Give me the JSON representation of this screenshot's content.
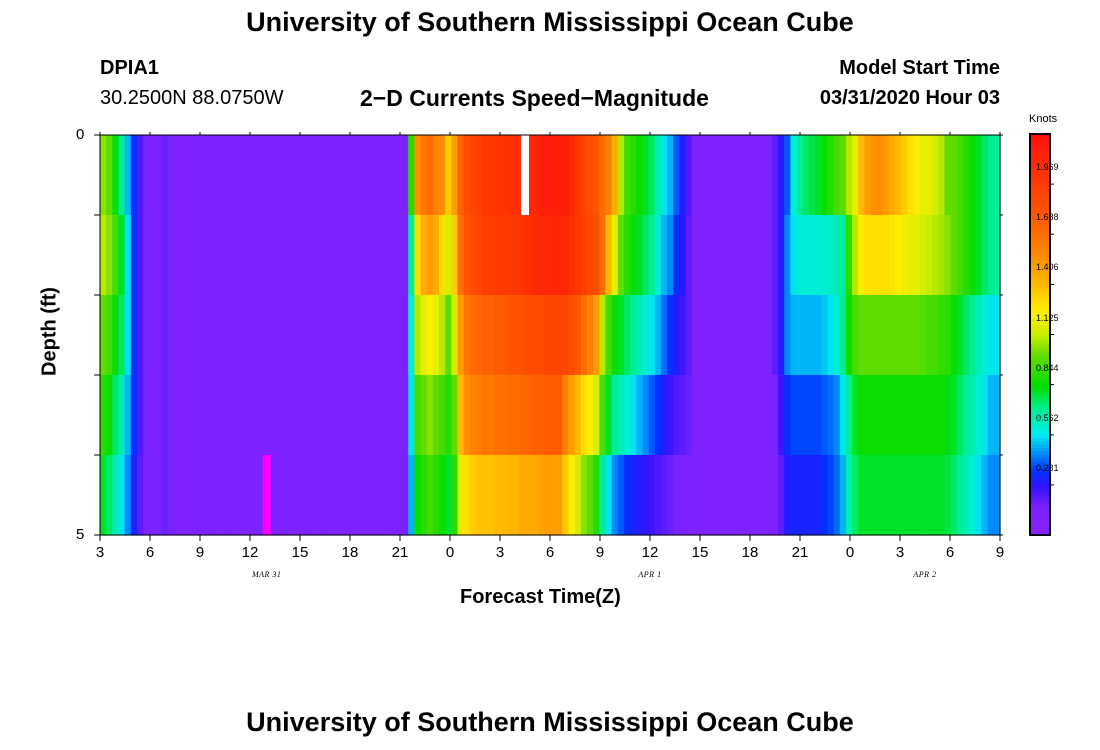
{
  "page_title": "University of Southern Mississippi Ocean Cube",
  "footer_title": "University of Southern Mississippi Ocean Cube",
  "station": {
    "id": "DPIA1",
    "coords": "30.2500N 88.0750W"
  },
  "model": {
    "label": "Model Start Time",
    "value": "03/31/2020 Hour 03"
  },
  "chart_data": {
    "type": "heatmap",
    "title": "2−D Currents Speed−Magnitude",
    "xlabel": "Forecast Time(Z)",
    "ylabel": "Depth (ft)",
    "x_range_hours": [
      0,
      54
    ],
    "y_range": [
      0,
      5
    ],
    "x_ticks": [
      "3",
      "6",
      "9",
      "12",
      "15",
      "18",
      "21",
      "0",
      "3",
      "6",
      "9",
      "12",
      "15",
      "18",
      "21",
      "0",
      "3",
      "6",
      "9"
    ],
    "date_labels": [
      {
        "text": "MAR 31",
        "hour": 10
      },
      {
        "text": "APR 1",
        "hour": 33
      },
      {
        "text": "APR 2",
        "hour": 49.5
      }
    ],
    "y_ticks": [
      "0",
      "5"
    ],
    "colorbar": {
      "unit": "Knots",
      "min": 0.0,
      "max": 2.25,
      "labels": [
        "1.969",
        "1.688",
        "1.406",
        "1.125",
        "0.844",
        "0.562",
        "0.281"
      ]
    },
    "depth_layers": [
      0,
      1,
      2,
      3,
      4,
      5
    ],
    "values_knots": [
      [
        1.05,
        1.0,
        0.85,
        0.7,
        0.5,
        0.35,
        0.22,
        0.15,
        0.12,
        0.12,
        0.18,
        0.15,
        0.1,
        0.1,
        0.1,
        0.1,
        0.1,
        0.1,
        0.1,
        0.1,
        0.1,
        0.1,
        0.1,
        0.1,
        0.1,
        0.1,
        0.1,
        0.1,
        0.1,
        0.1,
        0.1,
        0.1,
        0.1,
        0.1,
        0.1,
        0.1,
        0.1,
        0.1,
        0.1,
        0.1,
        0.1,
        0.1,
        0.1,
        0.1,
        0.1,
        0.1,
        0.1,
        0.1,
        0.1,
        0.1,
        0.9,
        1.55,
        1.65,
        1.7,
        1.6,
        1.55,
        1.35,
        1.5,
        1.75,
        1.85,
        1.9,
        1.95,
        2.0,
        2.0,
        2.02,
        2.03,
        2.05,
        2.05,
        2.08,
        2.1,
        2.12,
        2.15,
        2.15,
        2.17,
        2.17,
        2.15,
        2.1,
        2.0,
        1.9,
        1.85,
        1.8,
        1.7,
        1.6,
        1.45,
        1.1,
        0.95,
        0.9,
        0.85,
        0.8,
        0.75,
        0.65,
        0.55,
        0.5,
        0.4,
        0.3,
        0.22,
        0.1,
        0.08,
        0.08,
        0.08,
        0.08,
        0.08,
        0.08,
        0.08,
        0.08,
        0.08,
        0.08,
        0.08,
        0.1,
        0.2,
        0.3,
        0.4,
        0.6,
        0.7,
        0.75,
        0.78,
        0.8,
        0.85,
        0.9,
        0.95,
        1.0,
        1.1,
        1.2,
        1.4,
        1.5,
        1.55,
        1.55,
        1.5,
        1.45,
        1.4,
        1.35,
        1.3,
        1.25,
        1.2,
        1.2,
        1.15,
        1.1,
        1.0,
        1.0,
        0.95,
        0.9,
        0.85,
        0.8,
        0.75,
        0.7,
        0.7
      ],
      [
        1.1,
        1.05,
        0.95,
        0.8,
        0.55,
        0.35,
        0.22,
        0.15,
        0.12,
        0.12,
        0.18,
        0.15,
        0.1,
        0.1,
        0.1,
        0.1,
        0.1,
        0.1,
        0.1,
        0.1,
        0.1,
        0.1,
        0.1,
        0.1,
        0.1,
        0.1,
        0.1,
        0.1,
        0.1,
        0.1,
        0.1,
        0.1,
        0.1,
        0.1,
        0.1,
        0.1,
        0.1,
        0.1,
        0.1,
        0.1,
        0.1,
        0.1,
        0.1,
        0.1,
        0.1,
        0.1,
        0.1,
        0.1,
        0.1,
        0.1,
        0.7,
        1.3,
        1.45,
        1.5,
        1.45,
        1.3,
        1.15,
        1.35,
        1.7,
        1.8,
        1.85,
        1.9,
        1.95,
        1.95,
        1.97,
        1.98,
        2.0,
        2.0,
        2.02,
        2.05,
        2.07,
        2.1,
        2.1,
        2.12,
        2.12,
        2.1,
        2.05,
        2.0,
        1.95,
        1.9,
        1.85,
        1.7,
        1.4,
        1.2,
        1.0,
        0.9,
        0.85,
        0.8,
        0.75,
        0.7,
        0.6,
        0.5,
        0.45,
        0.35,
        0.28,
        0.2,
        0.1,
        0.08,
        0.08,
        0.08,
        0.08,
        0.08,
        0.08,
        0.08,
        0.08,
        0.08,
        0.08,
        0.08,
        0.1,
        0.2,
        0.3,
        0.45,
        0.55,
        0.6,
        0.6,
        0.6,
        0.6,
        0.6,
        0.62,
        0.65,
        0.7,
        0.9,
        1.1,
        1.25,
        1.3,
        1.3,
        1.3,
        1.3,
        1.28,
        1.25,
        1.22,
        1.2,
        1.18,
        1.15,
        1.12,
        1.1,
        1.08,
        1.05,
        1.0,
        0.95,
        0.9,
        0.85,
        0.8,
        0.75,
        0.7,
        0.7
      ],
      [
        1.0,
        0.95,
        0.85,
        0.75,
        0.55,
        0.35,
        0.22,
        0.15,
        0.12,
        0.12,
        0.18,
        0.15,
        0.1,
        0.1,
        0.1,
        0.1,
        0.1,
        0.1,
        0.1,
        0.1,
        0.1,
        0.1,
        0.1,
        0.1,
        0.1,
        0.1,
        0.1,
        0.1,
        0.1,
        0.1,
        0.1,
        0.1,
        0.1,
        0.1,
        0.1,
        0.1,
        0.1,
        0.1,
        0.1,
        0.1,
        0.1,
        0.1,
        0.1,
        0.1,
        0.1,
        0.1,
        0.1,
        0.1,
        0.1,
        0.1,
        0.6,
        1.1,
        1.2,
        1.25,
        1.2,
        1.1,
        1.0,
        1.15,
        1.5,
        1.65,
        1.7,
        1.72,
        1.75,
        1.75,
        1.77,
        1.78,
        1.8,
        1.8,
        1.82,
        1.85,
        1.85,
        1.88,
        1.9,
        1.92,
        1.92,
        1.9,
        1.85,
        1.8,
        1.7,
        1.6,
        1.5,
        1.1,
        0.95,
        0.85,
        0.8,
        0.75,
        0.7,
        0.65,
        0.6,
        0.55,
        0.5,
        0.42,
        0.35,
        0.3,
        0.25,
        0.2,
        0.1,
        0.08,
        0.08,
        0.08,
        0.08,
        0.08,
        0.08,
        0.08,
        0.08,
        0.08,
        0.08,
        0.08,
        0.1,
        0.2,
        0.3,
        0.45,
        0.5,
        0.5,
        0.5,
        0.5,
        0.5,
        0.52,
        0.55,
        0.6,
        0.7,
        0.85,
        0.95,
        1.0,
        1.0,
        1.0,
        1.0,
        1.0,
        1.0,
        1.0,
        1.0,
        1.0,
        1.0,
        0.98,
        0.95,
        0.95,
        0.92,
        0.9,
        0.85,
        0.8,
        0.75,
        0.7,
        0.65,
        0.6,
        0.55,
        0.55
      ],
      [
        0.9,
        0.85,
        0.75,
        0.65,
        0.5,
        0.35,
        0.22,
        0.15,
        0.12,
        0.12,
        0.18,
        0.15,
        0.1,
        0.1,
        0.1,
        0.1,
        0.1,
        0.1,
        0.1,
        0.1,
        0.1,
        0.1,
        0.1,
        0.1,
        0.1,
        0.1,
        0.1,
        0.1,
        0.1,
        0.1,
        0.1,
        0.1,
        0.1,
        0.1,
        0.1,
        0.1,
        0.1,
        0.1,
        0.1,
        0.1,
        0.1,
        0.1,
        0.1,
        0.1,
        0.1,
        0.1,
        0.1,
        0.1,
        0.1,
        0.1,
        0.55,
        0.95,
        1.0,
        1.05,
        1.0,
        0.95,
        0.9,
        1.0,
        1.4,
        1.55,
        1.6,
        1.62,
        1.65,
        1.65,
        1.67,
        1.68,
        1.7,
        1.7,
        1.72,
        1.73,
        1.75,
        1.75,
        1.77,
        1.78,
        1.78,
        1.6,
        1.5,
        1.4,
        1.3,
        1.25,
        1.15,
        0.95,
        0.8,
        0.7,
        0.65,
        0.6,
        0.55,
        0.5,
        0.45,
        0.4,
        0.35,
        0.3,
        0.25,
        0.22,
        0.2,
        0.18,
        0.1,
        0.08,
        0.08,
        0.08,
        0.08,
        0.08,
        0.08,
        0.08,
        0.08,
        0.08,
        0.08,
        0.08,
        0.1,
        0.15,
        0.25,
        0.35,
        0.38,
        0.38,
        0.38,
        0.38,
        0.38,
        0.4,
        0.42,
        0.45,
        0.55,
        0.7,
        0.8,
        0.85,
        0.85,
        0.85,
        0.85,
        0.85,
        0.85,
        0.85,
        0.85,
        0.85,
        0.85,
        0.85,
        0.85,
        0.85,
        0.85,
        0.82,
        0.8,
        0.75,
        0.7,
        0.65,
        0.6,
        0.55,
        0.5,
        0.5
      ],
      [
        0.8,
        0.75,
        0.65,
        0.55,
        0.45,
        0.32,
        0.2,
        0.15,
        0.12,
        0.12,
        0.18,
        0.15,
        0.1,
        0.1,
        0.1,
        0.1,
        0.1,
        0.1,
        0.1,
        0.1,
        0.1,
        0.1,
        0.1,
        0.1,
        0.1,
        0.1,
        0.1,
        0.1,
        0.1,
        0.1,
        0.1,
        0.1,
        0.1,
        0.1,
        0.1,
        0.1,
        0.1,
        0.1,
        0.1,
        0.1,
        0.1,
        0.1,
        0.1,
        0.1,
        0.1,
        0.1,
        0.1,
        0.1,
        0.1,
        0.1,
        0.5,
        0.85,
        0.9,
        0.95,
        0.9,
        0.85,
        0.8,
        0.9,
        1.2,
        1.3,
        1.35,
        1.37,
        1.38,
        1.38,
        1.4,
        1.4,
        1.42,
        1.42,
        1.45,
        1.45,
        1.45,
        1.48,
        1.5,
        1.5,
        1.5,
        1.35,
        1.25,
        1.15,
        1.05,
        1.0,
        0.9,
        0.7,
        0.55,
        0.45,
        0.4,
        0.35,
        0.32,
        0.3,
        0.28,
        0.25,
        0.22,
        0.2,
        0.18,
        0.15,
        0.15,
        0.12,
        0.1,
        0.08,
        0.08,
        0.08,
        0.08,
        0.08,
        0.08,
        0.08,
        0.08,
        0.08,
        0.08,
        0.08,
        0.1,
        0.12,
        0.2,
        0.3,
        0.32,
        0.32,
        0.32,
        0.32,
        0.32,
        0.35,
        0.38,
        0.42,
        0.5,
        0.65,
        0.75,
        0.8,
        0.8,
        0.8,
        0.8,
        0.8,
        0.8,
        0.8,
        0.8,
        0.8,
        0.8,
        0.8,
        0.8,
        0.8,
        0.8,
        0.78,
        0.75,
        0.7,
        0.65,
        0.6,
        0.55,
        0.5,
        0.45,
        0.45
      ]
    ],
    "missing_cells": [
      {
        "layer": 0,
        "hour": 25.5
      }
    ],
    "highlight_cells": [
      {
        "layer": 4,
        "hour": 10.0,
        "color": "#ff00ff"
      }
    ]
  }
}
